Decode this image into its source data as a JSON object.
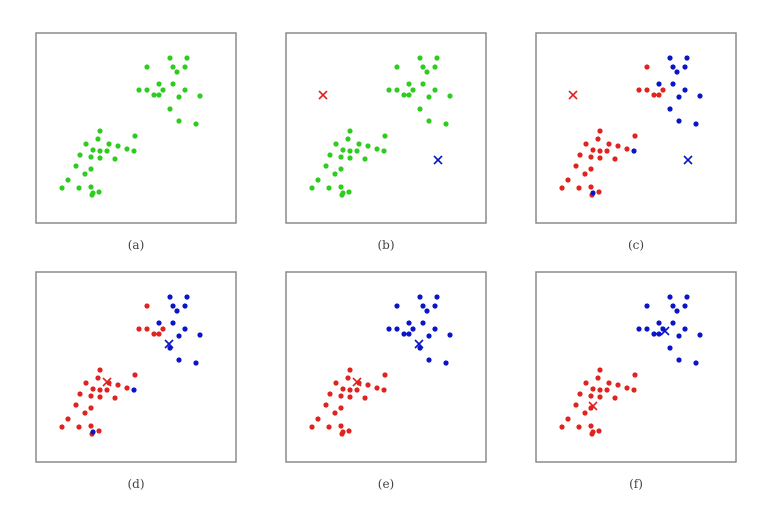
{
  "colors": {
    "unassigned": "#2ecc1f",
    "cluster_1": "#e0231e",
    "cluster_2": "#0a14c8",
    "frame": "#8a8a8a"
  },
  "panels": [
    {
      "label": "(a)",
      "points": [],
      "centroids": []
    },
    {
      "label": "(b)",
      "points": [],
      "centroids": []
    },
    {
      "label": "(c)",
      "points": [],
      "centroids": []
    },
    {
      "label": "(d)",
      "points": [],
      "centroids": []
    },
    {
      "label": "(e)",
      "points": [],
      "centroids": []
    },
    {
      "label": "(f)",
      "points": [],
      "centroids": []
    }
  ]
}
